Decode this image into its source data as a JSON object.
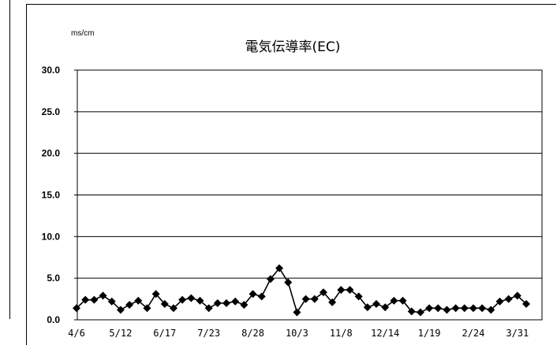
{
  "chart_data": {
    "type": "line",
    "title": "電気伝導率(EC)",
    "unit_label": "ms/cm",
    "ylim": [
      0,
      30
    ],
    "y_ticks": [
      "30.0",
      "25.0",
      "20.0",
      "15.0",
      "10.0",
      "5.0",
      "0.0"
    ],
    "y_tick_values": [
      30,
      25,
      20,
      15,
      10,
      5,
      0
    ],
    "x_tick_labels": [
      "4/6",
      "5/12",
      "6/17",
      "7/23",
      "8/28",
      "10/3",
      "11/8",
      "12/14",
      "1/19",
      "2/24",
      "3/31"
    ],
    "grid": true,
    "marker": "diamond",
    "color": "#000000",
    "values": [
      1.4,
      2.4,
      2.4,
      2.9,
      2.2,
      1.2,
      1.8,
      2.3,
      1.4,
      3.1,
      1.9,
      1.4,
      2.4,
      2.6,
      2.3,
      1.4,
      2.0,
      2.0,
      2.2,
      1.8,
      3.1,
      2.8,
      4.9,
      6.2,
      4.5,
      0.9,
      2.5,
      2.5,
      3.3,
      2.1,
      3.6,
      3.6,
      2.8,
      1.5,
      1.9,
      1.5,
      2.3,
      2.3,
      1.0,
      0.9,
      1.4,
      1.4,
      1.2,
      1.4,
      1.4,
      1.4,
      1.4,
      1.2,
      2.2,
      2.5,
      2.9,
      1.9
    ]
  }
}
